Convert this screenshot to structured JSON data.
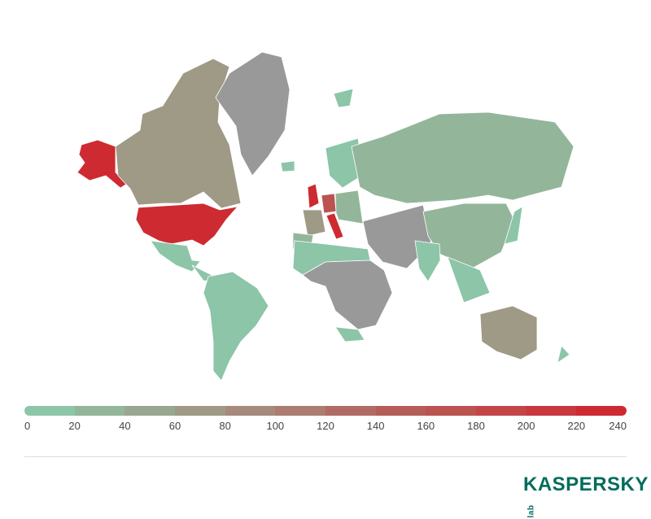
{
  "chart_data": {
    "type": "heatmap",
    "legend": {
      "ticks": [
        "0",
        "20",
        "40",
        "60",
        "80",
        "100",
        "120",
        "140",
        "160",
        "180",
        "200",
        "220",
        "240"
      ],
      "colors": [
        "#8cc5a8",
        "#93b69b",
        "#99a791",
        "#9f9a86",
        "#a68a7c",
        "#ab7c71",
        "#b06b64",
        "#b55e59",
        "#bb5351",
        "#c24548",
        "#c8383e",
        "#ce2a31"
      ],
      "range": [
        0,
        240
      ]
    },
    "no_data_color": "#999999",
    "regions": [
      {
        "name": "USA (Alaska)",
        "value": 240
      },
      {
        "name": "USA",
        "value": 240
      },
      {
        "name": "Canada",
        "value": 70
      },
      {
        "name": "Greenland",
        "value": null
      },
      {
        "name": "Mexico",
        "value": 10
      },
      {
        "name": "Central America",
        "value": 10
      },
      {
        "name": "South America",
        "value": 10
      },
      {
        "name": "Iceland",
        "value": 10
      },
      {
        "name": "Svalbard",
        "value": 10
      },
      {
        "name": "United Kingdom",
        "value": 240
      },
      {
        "name": "France",
        "value": 70
      },
      {
        "name": "Spain",
        "value": 30
      },
      {
        "name": "Germany",
        "value": 160
      },
      {
        "name": "Italy",
        "value": 220
      },
      {
        "name": "Scandinavia",
        "value": 10
      },
      {
        "name": "Eastern Europe",
        "value": 30
      },
      {
        "name": "Russia",
        "value": 30
      },
      {
        "name": "Middle East & Central Asia",
        "value": null
      },
      {
        "name": "China",
        "value": 30
      },
      {
        "name": "India",
        "value": 10
      },
      {
        "name": "Southeast Asia",
        "value": 10
      },
      {
        "name": "Japan",
        "value": 10
      },
      {
        "name": "North Africa",
        "value": 10
      },
      {
        "name": "Central Africa",
        "value": null
      },
      {
        "name": "South Africa",
        "value": 10
      },
      {
        "name": "Australia",
        "value": 70
      },
      {
        "name": "New Zealand",
        "value": 10
      }
    ]
  },
  "logo": {
    "text": "KASPERSKY",
    "suffix": "lab"
  }
}
